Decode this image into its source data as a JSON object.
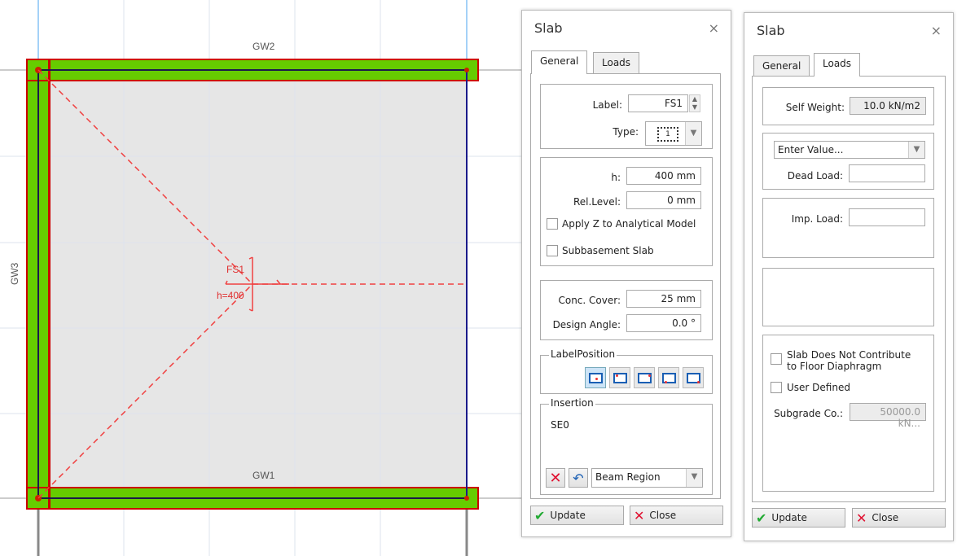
{
  "canvas": {
    "wall_labels": {
      "top": "GW2",
      "left": "GW3",
      "bottom": "GW1"
    },
    "slab_label": "FS1",
    "slab_thickness_label": "h=400",
    "colors": {
      "wall_fill": "#66cc00",
      "wall_outline": "#cc0000",
      "slab_fill": "#e6e6e6",
      "grid": "#dde3ee"
    }
  },
  "dialog_general": {
    "title": "Slab",
    "close_icon": "×",
    "tabs": [
      {
        "label": "General",
        "active": true
      },
      {
        "label": "Loads",
        "active": false
      }
    ],
    "label_field": {
      "label": "Label:",
      "value": "FS1"
    },
    "type_field": {
      "label": "Type:",
      "value": "1"
    },
    "h_field": {
      "label": "h:",
      "value": "400 mm"
    },
    "rel_level_field": {
      "label": "Rel.Level:",
      "value": "0 mm"
    },
    "apply_z": {
      "label": "Apply Z to Analytical Model",
      "checked": false
    },
    "subbasement": {
      "label": "Subbasement Slab",
      "checked": false
    },
    "conc_cover": {
      "label": "Conc. Cover:",
      "value": "25 mm"
    },
    "design_angle": {
      "label": "Design Angle:",
      "value": "0.0 °"
    },
    "label_position": {
      "title": "LabelPosition",
      "options": [
        "center",
        "top-left",
        "top-right",
        "bottom-left",
        "bottom-right"
      ],
      "selected": "center"
    },
    "insertion": {
      "title": "Insertion",
      "value": "SE0",
      "region": "Beam Region"
    },
    "update_label": "Update",
    "close_label": "Close"
  },
  "dialog_loads": {
    "title": "Slab",
    "close_icon": "×",
    "tabs": [
      {
        "label": "General",
        "active": false
      },
      {
        "label": "Loads",
        "active": true
      }
    ],
    "self_weight": {
      "label": "Self Weight:",
      "value": "10.0 kN/m2"
    },
    "load_select": "Enter Value...",
    "dead_load": {
      "label": "Dead Load:",
      "value": ""
    },
    "imp_load": {
      "label": "Imp. Load:",
      "value": ""
    },
    "no_diaphragm": {
      "label_line1": "Slab Does Not Contribute",
      "label_line2": "to Floor Diaphragm",
      "checked": false
    },
    "user_defined": {
      "label": "User Defined",
      "checked": false
    },
    "subgrade": {
      "label": "Subgrade Co.:",
      "value": "50000.0 kN..."
    },
    "update_label": "Update",
    "close_label": "Close"
  }
}
